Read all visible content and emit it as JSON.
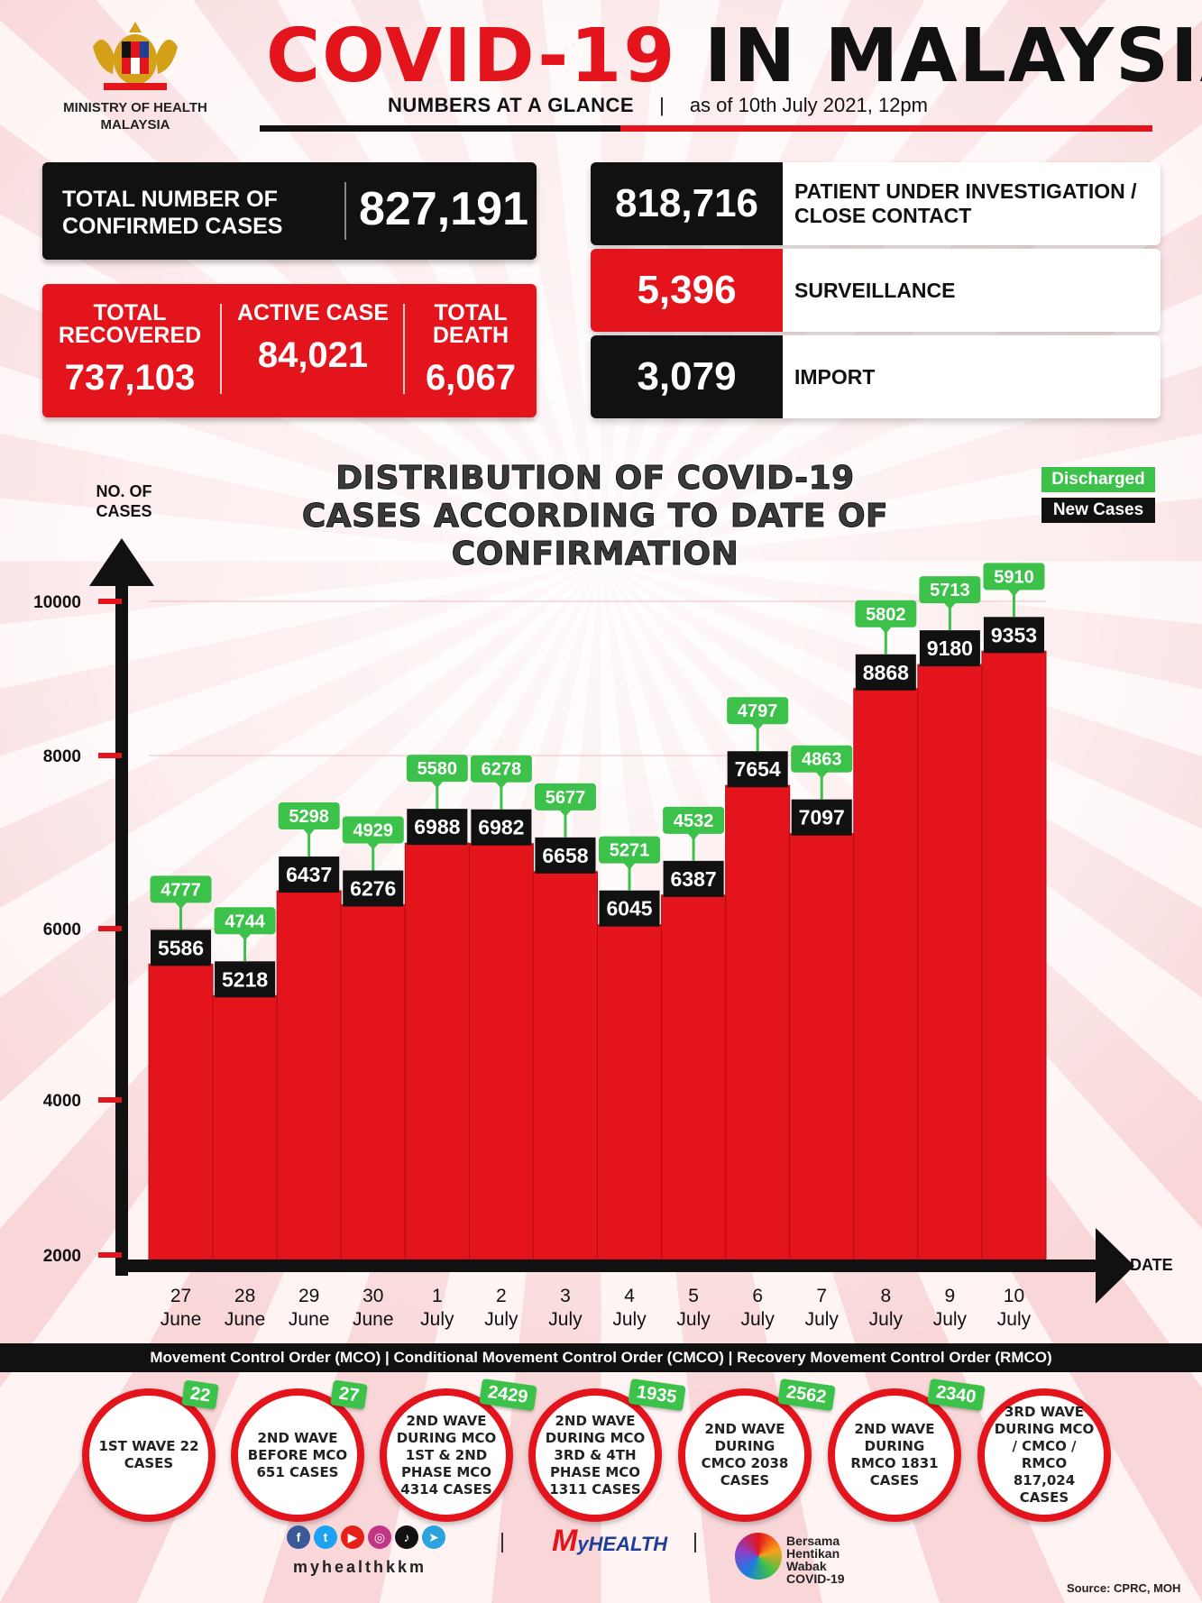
{
  "header": {
    "ministry": "MINISTRY OF HEALTH MALAYSIA",
    "title_red": "COVID-19",
    "title_black": "IN MALAYSIA",
    "subtitle_bold": "NUMBERS AT A GLANCE",
    "subtitle_sep": "|",
    "subtitle_date": "as of 10th July 2021, 12pm"
  },
  "totals": {
    "confirmed_label": "TOTAL NUMBER OF CONFIRMED CASES",
    "confirmed_value": "827,191",
    "recovered_label": "TOTAL RECOVERED",
    "recovered_value": "737,103",
    "active_label": "ACTIVE CASE",
    "active_value": "84,021",
    "death_label": "TOTAL DEATH",
    "death_value": "6,067"
  },
  "breakdown": [
    {
      "value": "818,716",
      "label": "PATIENT UNDER INVESTIGATION / CLOSE CONTACT",
      "color": "#111111"
    },
    {
      "value": "5,396",
      "label": "SURVEILLANCE",
      "color": "#e3141c"
    },
    {
      "value": "3,079",
      "label": "IMPORT",
      "color": "#111111"
    }
  ],
  "chart_data": {
    "type": "bar",
    "title": "DISTRIBUTION OF COVID-19 CASES ACCORDING TO DATE OF CONFIRMATION",
    "ylabel": "NO. OF CASES",
    "xlabel": "DATE",
    "yticks": [
      2000,
      4000,
      6000,
      8000,
      10000
    ],
    "ylim": [
      2000,
      10000
    ],
    "categories": [
      "27 June",
      "28 June",
      "29 June",
      "30 June",
      "1 July",
      "2 July",
      "3 July",
      "4 July",
      "5 July",
      "6 July",
      "7 July",
      "8 July",
      "9 July",
      "10 July"
    ],
    "series": [
      {
        "name": "New Cases",
        "values": [
          5586,
          5218,
          6437,
          6276,
          6988,
          6982,
          6658,
          6045,
          6387,
          7654,
          7097,
          8868,
          9180,
          9353
        ]
      },
      {
        "name": "Discharged",
        "values": [
          4777,
          4744,
          5298,
          4929,
          5580,
          6278,
          5677,
          5271,
          4532,
          4797,
          4863,
          5802,
          5713,
          5910
        ]
      }
    ],
    "legend": [
      "Discharged",
      "New Cases"
    ],
    "legend_position": "top-right",
    "colors": {
      "bar": "#e3141c",
      "new_cases_label": "#111111",
      "discharged_label": "#3cc24a"
    }
  },
  "strip_text": "Movement Control Order (MCO) | Conditional Movement Control Order (CMCO) | Recovery Movement Control Order (RMCO)",
  "waves": [
    {
      "text": "1ST WAVE 22 CASES",
      "badge": "22"
    },
    {
      "text": "2ND WAVE BEFORE MCO 651 CASES",
      "badge": "27"
    },
    {
      "text": "2ND WAVE DURING MCO 1ST & 2ND PHASE MCO 4314 CASES",
      "badge": "2429"
    },
    {
      "text": "2ND WAVE DURING MCO 3RD & 4TH PHASE MCO 1311 CASES",
      "badge": "1935"
    },
    {
      "text": "2ND WAVE DURING CMCO 2038 CASES",
      "badge": "2562"
    },
    {
      "text": "2ND WAVE DURING RMCO 1831 CASES",
      "badge": "2340"
    },
    {
      "text": "3RD WAVE DURING MCO / CMCO / RMCO 817,024 CASES",
      "badge": ""
    }
  ],
  "footer": {
    "handle": "myhealthkkm",
    "myhealth_m": "M",
    "myhealth_rest": "yHEALTH",
    "bersama": "Bersama Hentikan Wabak COVID-19",
    "source": "Source: CPRC, MOH",
    "social_icons": [
      "facebook-icon",
      "twitter-icon",
      "youtube-icon",
      "instagram-icon",
      "tiktok-icon",
      "telegram-icon"
    ]
  }
}
